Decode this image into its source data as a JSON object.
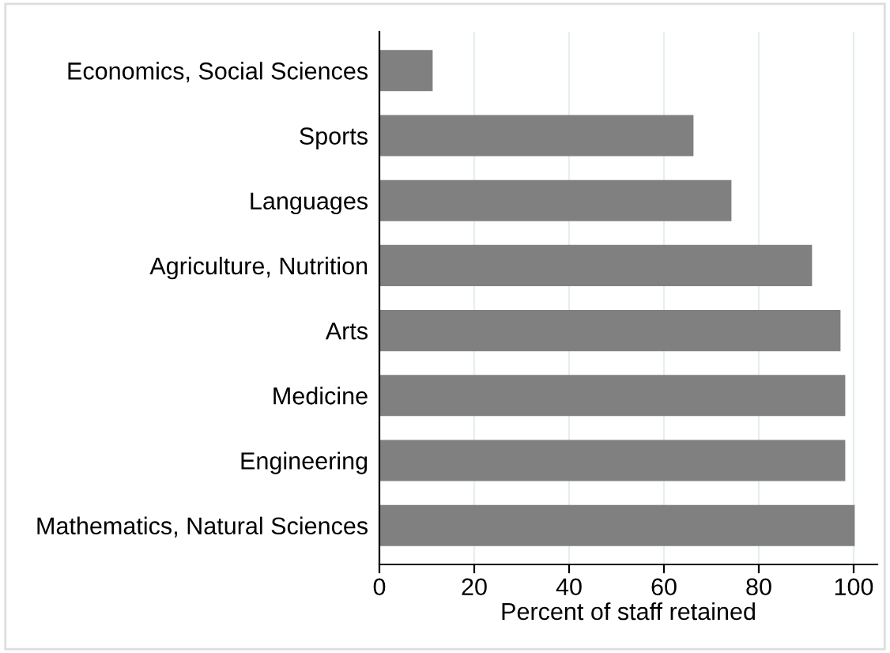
{
  "chart_data": {
    "type": "bar",
    "orientation": "horizontal",
    "xlabel": "Percent of staff retained",
    "categories": [
      "Economics, Social Sciences",
      "Sports",
      "Languages",
      "Agriculture, Nutrition",
      "Arts",
      "Medicine",
      "Engineering",
      "Mathematics, Natural Sciences"
    ],
    "values": [
      11,
      66,
      74,
      91,
      97,
      98,
      98,
      100
    ],
    "color": "#808080",
    "xlim": [
      0,
      105
    ],
    "xticks": [
      0,
      20,
      40,
      60,
      80,
      100
    ],
    "grid": "x",
    "legend": false
  }
}
